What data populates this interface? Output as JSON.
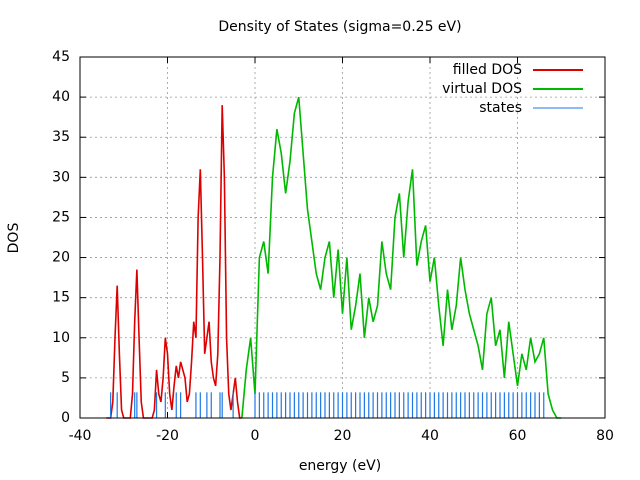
{
  "chart_data": {
    "type": "line",
    "title": "Density of States (sigma=0.25 eV)",
    "xlabel": "energy (eV)",
    "ylabel": "DOS",
    "xlim": [
      -40,
      80
    ],
    "xticks": [
      -40,
      -20,
      0,
      20,
      40,
      60,
      80
    ],
    "ylim": [
      0,
      45
    ],
    "yticks": [
      0,
      5,
      10,
      15,
      20,
      25,
      30,
      35,
      40,
      45
    ],
    "grid": true,
    "legend": "top-right",
    "series": [
      {
        "name": "filled DOS",
        "color": "#dd0000",
        "style": "line",
        "x": [
          -34,
          -33.5,
          -33,
          -32.5,
          -32,
          -31.5,
          -31,
          -30.5,
          -30,
          -29.5,
          -29,
          -28.5,
          -28,
          -27.5,
          -27,
          -26.5,
          -26,
          -25.5,
          -25,
          -24.5,
          -24,
          -23.5,
          -23,
          -22.5,
          -22,
          -21.5,
          -21,
          -20.5,
          -20,
          -19.5,
          -19,
          -18.5,
          -18,
          -17.5,
          -17,
          -16.5,
          -16,
          -15.5,
          -15,
          -14.5,
          -14,
          -13.5,
          -13,
          -12.5,
          -12,
          -11.5,
          -11,
          -10.5,
          -10,
          -9.5,
          -9,
          -8.5,
          -8,
          -7.5,
          -7,
          -6.5,
          -6,
          -5.5,
          -5,
          -4.5,
          -4,
          -3.5,
          -3
        ],
        "values": [
          0,
          0,
          0,
          2,
          10,
          16.5,
          8,
          1,
          0,
          0,
          0,
          0,
          3,
          12,
          18.5,
          10,
          2,
          0,
          0,
          0,
          0,
          0,
          1,
          6,
          3,
          2,
          5,
          10,
          8,
          3,
          1,
          4,
          6.5,
          5,
          7,
          6,
          5,
          2,
          3,
          7,
          12,
          10,
          25,
          31,
          20,
          8,
          10,
          12,
          7,
          5,
          4,
          8,
          20,
          39,
          30,
          10,
          3,
          1,
          3,
          5,
          2,
          0,
          0
        ]
      },
      {
        "name": "virtual DOS",
        "color": "#00b800",
        "style": "line",
        "x": [
          -3,
          -2,
          -1,
          0,
          1,
          2,
          3,
          4,
          5,
          6,
          7,
          8,
          9,
          10,
          11,
          12,
          13,
          14,
          15,
          16,
          17,
          18,
          19,
          20,
          21,
          22,
          23,
          24,
          25,
          26,
          27,
          28,
          29,
          30,
          31,
          32,
          33,
          34,
          35,
          36,
          37,
          38,
          39,
          40,
          41,
          42,
          43,
          44,
          45,
          46,
          47,
          48,
          49,
          50,
          51,
          52,
          53,
          54,
          55,
          56,
          57,
          58,
          59,
          60,
          61,
          62,
          63,
          64,
          65,
          66,
          67,
          68,
          69,
          70
        ],
        "values": [
          0,
          6,
          10,
          3,
          20,
          22,
          18,
          30,
          36,
          33,
          28,
          32,
          38,
          40,
          33,
          26,
          22,
          18,
          16,
          20,
          22,
          15,
          21,
          13,
          20,
          11,
          14,
          18,
          10,
          15,
          12,
          14,
          22,
          18,
          16,
          25,
          28,
          20,
          27,
          31,
          19,
          22,
          24,
          17,
          20,
          14,
          9,
          16,
          11,
          14,
          20,
          16,
          13,
          11,
          9,
          6,
          13,
          15,
          9,
          11,
          5,
          12,
          8,
          4,
          8,
          6,
          10,
          7,
          8,
          10,
          3,
          1,
          0,
          0
        ]
      },
      {
        "name": "states",
        "color": "#1e78e6",
        "style": "impulses",
        "x": [
          -33,
          -31.5,
          -27.5,
          -27,
          -22.5,
          -20.5,
          -18,
          -17,
          -13.5,
          -12.5,
          -11,
          -10,
          -8,
          -7.5,
          -5,
          0,
          1,
          2,
          3,
          4,
          5,
          6,
          7,
          8,
          9,
          10,
          11,
          12,
          13,
          14,
          15,
          16,
          17,
          18,
          19,
          20,
          21,
          22,
          23,
          24,
          25,
          26,
          27,
          28,
          29,
          30,
          31,
          32,
          33,
          34,
          35,
          36,
          37,
          38,
          39,
          40,
          41,
          42,
          43,
          44,
          45,
          46,
          47,
          48,
          49,
          50,
          51,
          52,
          53,
          54,
          55,
          56,
          57,
          58,
          59,
          60,
          61,
          62,
          63,
          64,
          65,
          66
        ],
        "values": [
          3.2,
          3.2,
          3.2,
          3.2,
          3.2,
          3.2,
          3.2,
          3.2,
          3.2,
          3.2,
          3.2,
          3.2,
          3.2,
          3.2,
          3.2,
          3.2,
          3.2,
          3.2,
          3.2,
          3.2,
          3.2,
          3.2,
          3.2,
          3.2,
          3.2,
          3.2,
          3.2,
          3.2,
          3.2,
          3.2,
          3.2,
          3.2,
          3.2,
          3.2,
          3.2,
          3.2,
          3.2,
          3.2,
          3.2,
          3.2,
          3.2,
          3.2,
          3.2,
          3.2,
          3.2,
          3.2,
          3.2,
          3.2,
          3.2,
          3.2,
          3.2,
          3.2,
          3.2,
          3.2,
          3.2,
          3.2,
          3.2,
          3.2,
          3.2,
          3.2,
          3.2,
          3.2,
          3.2,
          3.2,
          3.2,
          3.2,
          3.2,
          3.2,
          3.2,
          3.2,
          3.2,
          3.2,
          3.2,
          3.2,
          3.2,
          3.2,
          3.2,
          3.2,
          3.2,
          3.2,
          3.2,
          3.2
        ]
      }
    ]
  }
}
